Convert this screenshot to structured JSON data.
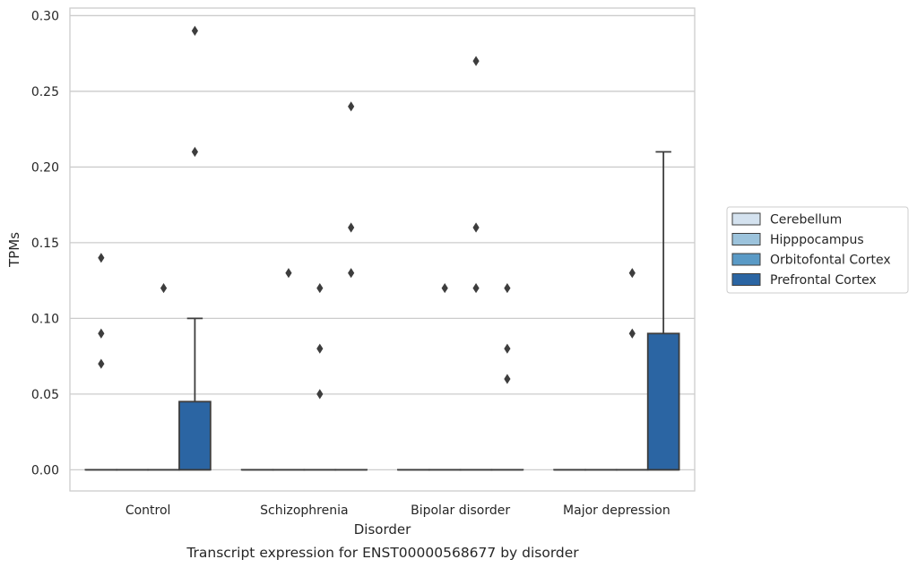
{
  "chart_data": {
    "type": "box",
    "title": "",
    "caption": "Transcript expression for ENST00000568677 by disorder",
    "xlabel": "Disorder",
    "ylabel": "TPMs",
    "ylim": [
      -0.014,
      0.305
    ],
    "yticks": [
      0.0,
      0.05,
      0.1,
      0.15,
      0.2,
      0.25,
      0.3
    ],
    "ytick_labels": [
      "0.00",
      "0.05",
      "0.10",
      "0.15",
      "0.20",
      "0.25",
      "0.30"
    ],
    "grid": "horizontal",
    "legend_position": "right",
    "categories": [
      "Control",
      "Schizophrenia",
      "Bipolar disorder",
      "Major depression"
    ],
    "series": [
      {
        "name": "Cerebellum",
        "color": "#d4e2ef",
        "boxes": [
          {
            "q1": 0,
            "median": 0,
            "q3": 0,
            "whisker_low": 0,
            "whisker_high": 0,
            "outliers": [
              0.07,
              0.09,
              0.14
            ]
          },
          {
            "q1": 0,
            "median": 0,
            "q3": 0,
            "whisker_low": 0,
            "whisker_high": 0,
            "outliers": []
          },
          {
            "q1": 0,
            "median": 0,
            "q3": 0,
            "whisker_low": 0,
            "whisker_high": 0,
            "outliers": []
          },
          {
            "q1": 0,
            "median": 0,
            "q3": 0,
            "whisker_low": 0,
            "whisker_high": 0,
            "outliers": []
          }
        ]
      },
      {
        "name": "Hipppocampus",
        "color": "#9cc3dc",
        "boxes": [
          {
            "q1": 0,
            "median": 0,
            "q3": 0,
            "whisker_low": 0,
            "whisker_high": 0,
            "outliers": []
          },
          {
            "q1": 0,
            "median": 0,
            "q3": 0,
            "whisker_low": 0,
            "whisker_high": 0,
            "outliers": [
              0.13
            ]
          },
          {
            "q1": 0,
            "median": 0,
            "q3": 0,
            "whisker_low": 0,
            "whisker_high": 0,
            "outliers": [
              0.12
            ]
          },
          {
            "q1": 0,
            "median": 0,
            "q3": 0,
            "whisker_low": 0,
            "whisker_high": 0,
            "outliers": []
          }
        ]
      },
      {
        "name": "Orbitofontal Cortex",
        "color": "#5a9ac6",
        "boxes": [
          {
            "q1": 0,
            "median": 0,
            "q3": 0,
            "whisker_low": 0,
            "whisker_high": 0,
            "outliers": [
              0.12
            ]
          },
          {
            "q1": 0,
            "median": 0,
            "q3": 0,
            "whisker_low": 0,
            "whisker_high": 0,
            "outliers": [
              0.05,
              0.08,
              0.12
            ]
          },
          {
            "q1": 0,
            "median": 0,
            "q3": 0,
            "whisker_low": 0,
            "whisker_high": 0,
            "outliers": [
              0.12,
              0.16,
              0.27
            ]
          },
          {
            "q1": 0,
            "median": 0,
            "q3": 0,
            "whisker_low": 0,
            "whisker_high": 0,
            "outliers": [
              0.09,
              0.13
            ]
          }
        ]
      },
      {
        "name": "Prefrontal Cortex",
        "color": "#2b65a3",
        "boxes": [
          {
            "q1": 0,
            "median": 0,
            "q3": 0.045,
            "whisker_low": 0,
            "whisker_high": 0.1,
            "outliers": [
              0.21,
              0.29
            ]
          },
          {
            "q1": 0,
            "median": 0,
            "q3": 0,
            "whisker_low": 0,
            "whisker_high": 0,
            "outliers": [
              0.13,
              0.16,
              0.24
            ]
          },
          {
            "q1": 0,
            "median": 0,
            "q3": 0,
            "whisker_low": 0,
            "whisker_high": 0,
            "outliers": [
              0.06,
              0.08,
              0.12
            ]
          },
          {
            "q1": 0,
            "median": 0,
            "q3": 0.09,
            "whisker_low": 0,
            "whisker_high": 0.21,
            "outliers": []
          }
        ]
      }
    ]
  }
}
